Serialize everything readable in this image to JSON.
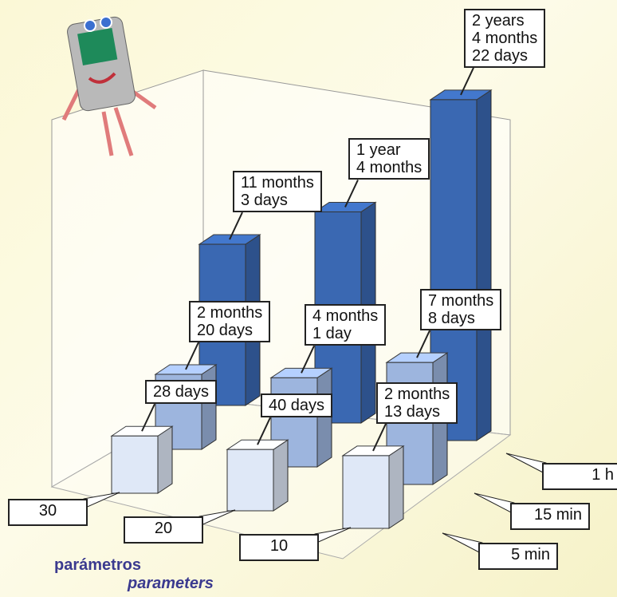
{
  "chart_data": {
    "type": "bar3d",
    "categories": [
      "30",
      "20",
      "10"
    ],
    "series": [
      {
        "name": "5 min",
        "color": "#dfe8f7",
        "values": [
          28,
          40,
          74
        ],
        "value_labels": [
          "28 days",
          "40 days",
          "2 months\n13 days"
        ]
      },
      {
        "name": "15 min",
        "color": "#9db5de",
        "values": [
          81,
          123,
          221
        ],
        "value_labels": [
          "2 months\n20 days",
          "4 months\n1 day",
          "7 months\n8 days"
        ]
      },
      {
        "name": "1 h",
        "color": "#3a68b2",
        "values": [
          338,
          487,
          874
        ],
        "value_labels": [
          "11 months\n3 days",
          "1 year\n4 months",
          "2 years\n4 months\n22 days"
        ]
      }
    ],
    "x_label": "parámetros",
    "x_label_translation": "parameters"
  }
}
